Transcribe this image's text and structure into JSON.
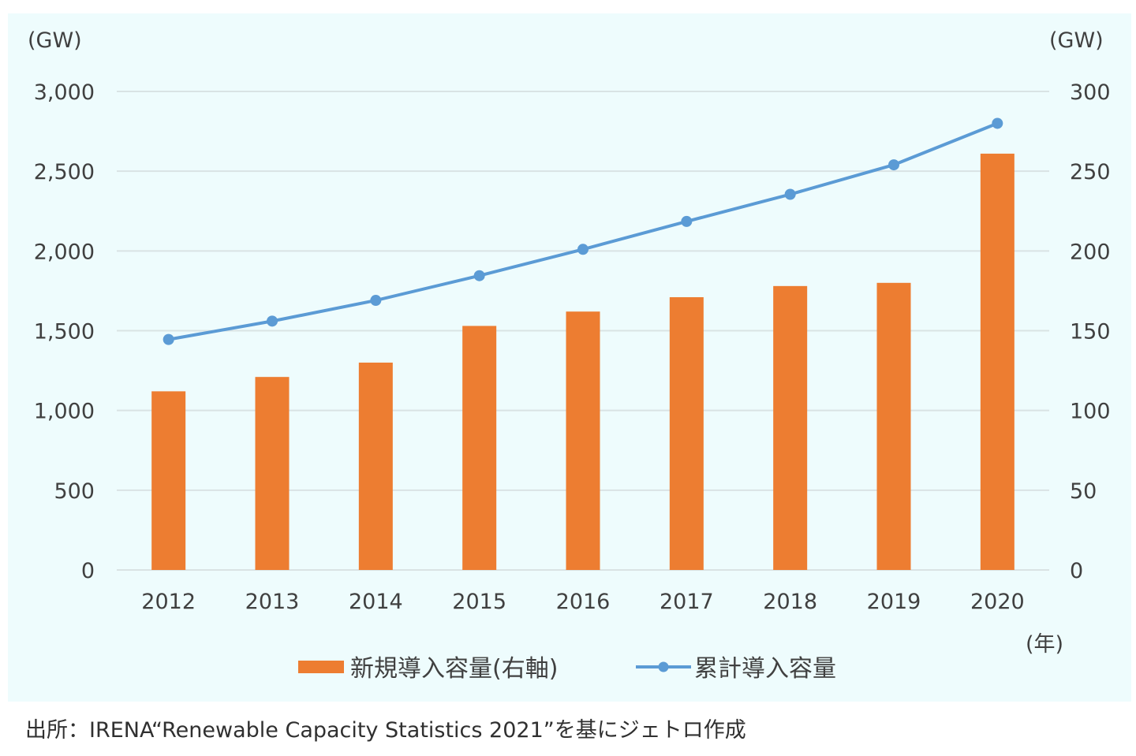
{
  "chart_data": {
    "type": "bar+line",
    "categories": [
      "2012",
      "2013",
      "2014",
      "2015",
      "2016",
      "2017",
      "2018",
      "2019",
      "2020"
    ],
    "series": [
      {
        "name": "新規導入容量(右軸)",
        "type": "bar",
        "axis": "right",
        "color": "#ed7d31",
        "values": [
          112,
          121,
          130,
          153,
          162,
          171,
          178,
          180,
          261
        ]
      },
      {
        "name": "累計導入容量",
        "type": "line",
        "axis": "left",
        "color": "#5b9bd5",
        "values": [
          1445,
          1560,
          1690,
          1845,
          2010,
          2185,
          2355,
          2540,
          2800
        ]
      }
    ],
    "left_axis": {
      "unit": "(GW)",
      "ylim": [
        0,
        3000
      ],
      "ticks": [
        "0",
        "500",
        "1,000",
        "1,500",
        "2,000",
        "2,500",
        "3,000"
      ]
    },
    "right_axis": {
      "unit": "(GW)",
      "ylim": [
        0,
        300
      ],
      "ticks": [
        "0",
        "50",
        "100",
        "150",
        "200",
        "250",
        "300"
      ]
    },
    "xlabel": "(年)",
    "legend": {
      "placement": "bottom-center",
      "items": [
        "新規導入容量(右軸)",
        "累計導入容量"
      ]
    },
    "grid": true
  },
  "source_note": "出所：IRENA“Renewable Capacity Statistics 2021”を基にジェトロ作成",
  "colors": {
    "background": "#eefcfd",
    "bar": "#ed7d31",
    "line": "#5b9bd5",
    "grid": "#d9e3e4",
    "text": "#404040"
  }
}
